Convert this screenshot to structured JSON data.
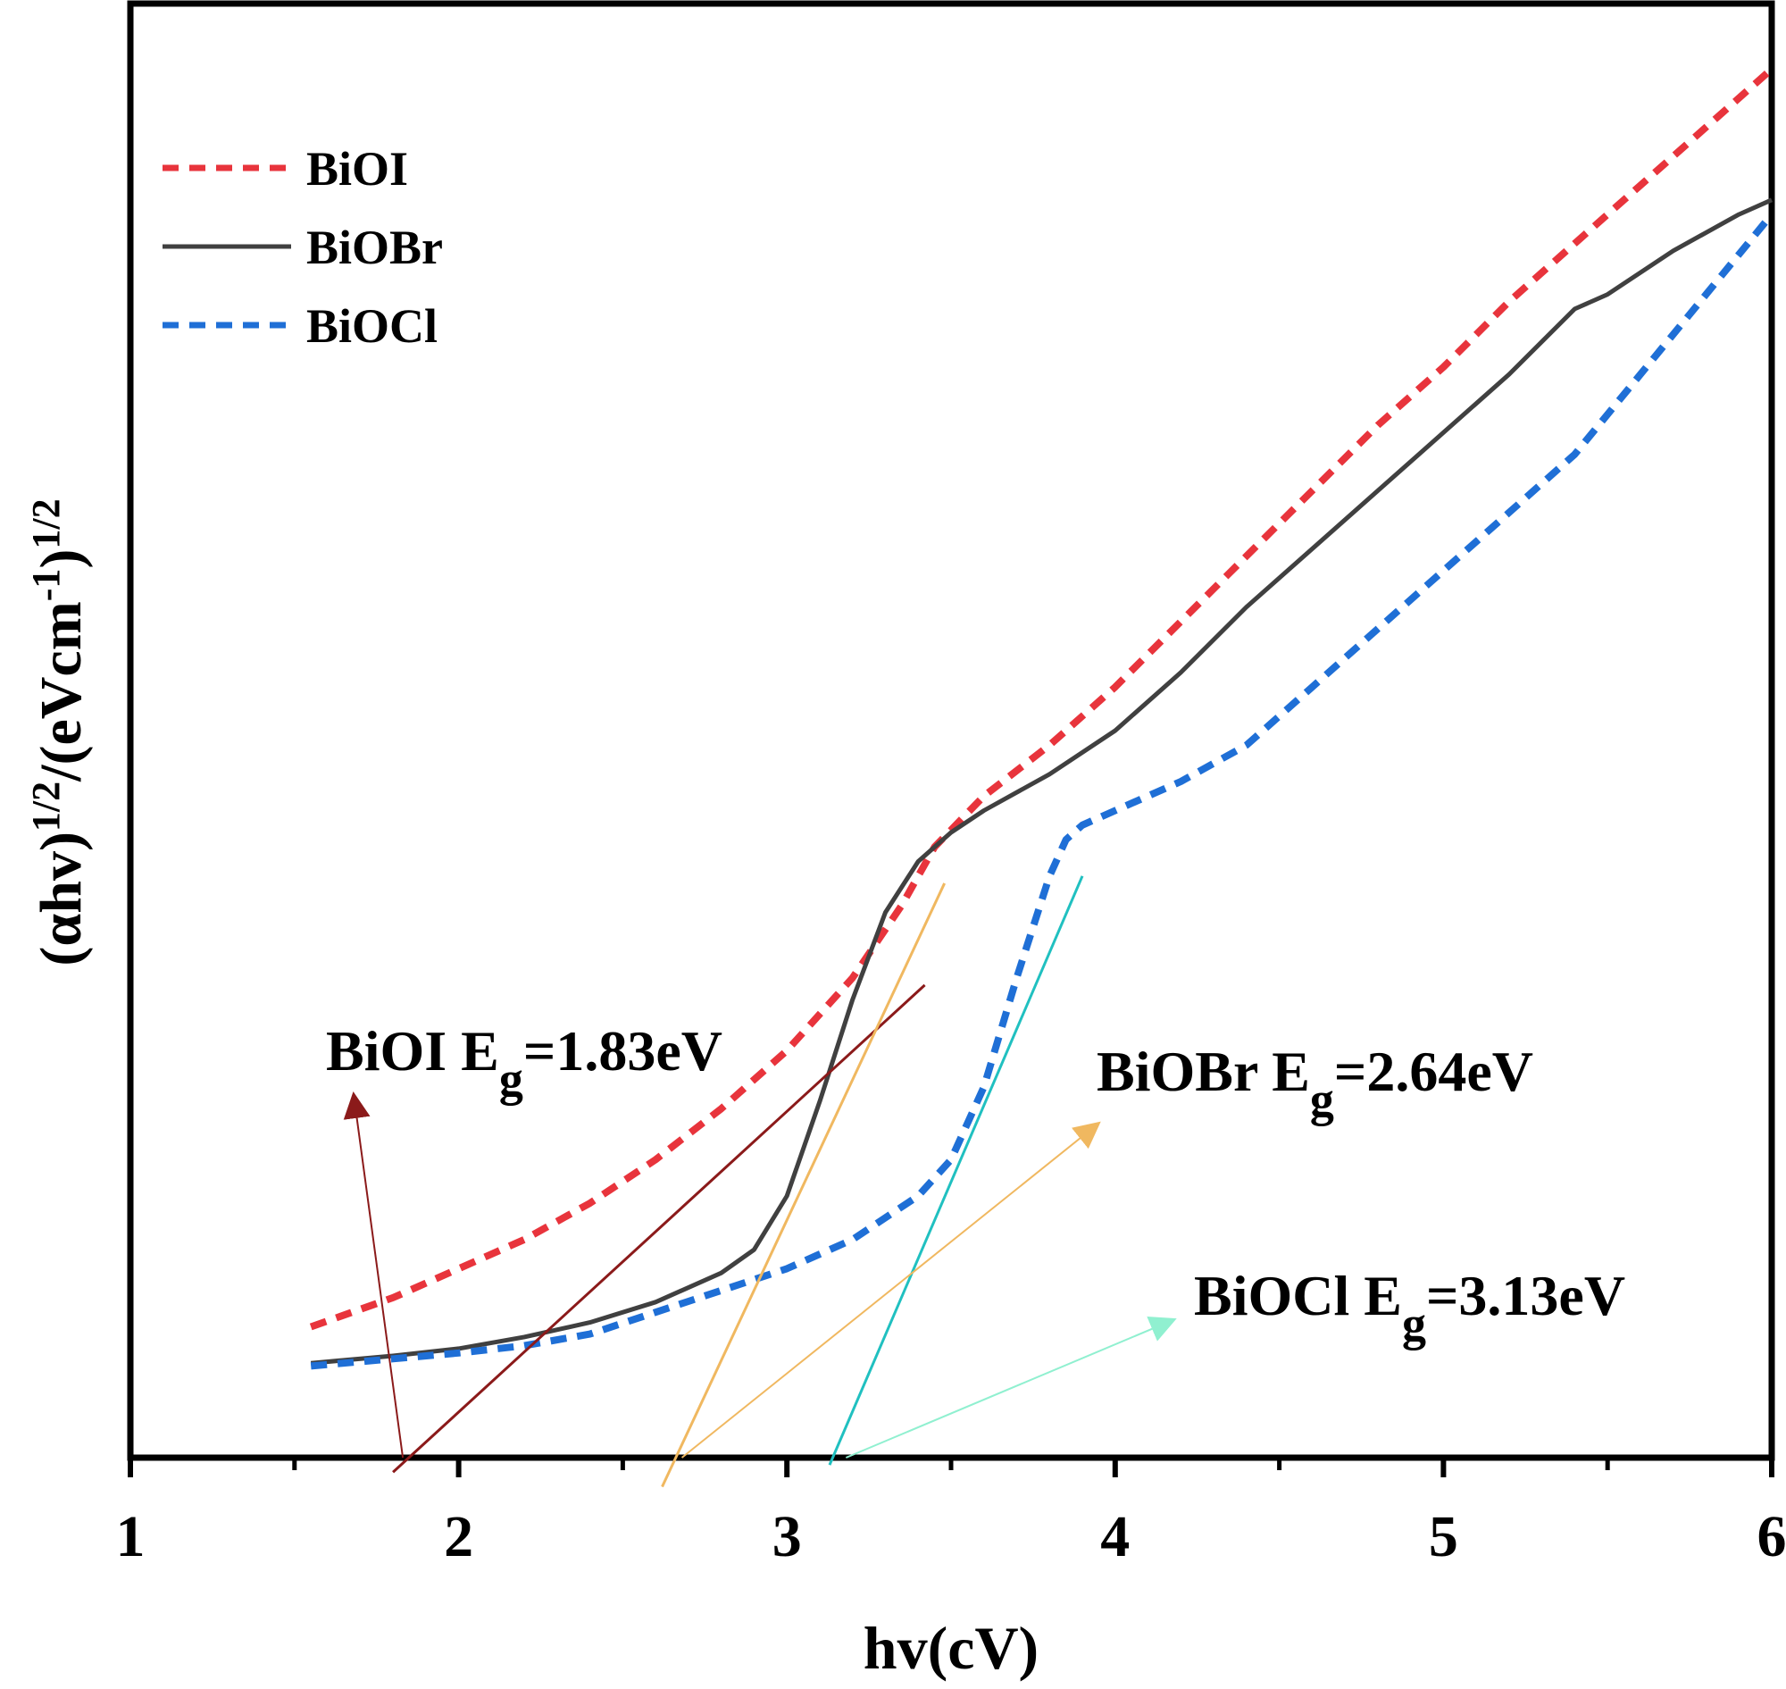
{
  "chart_data": {
    "type": "line",
    "title": "",
    "xlabel": "hv(cV)",
    "ylabel_main": "(αhv)",
    "ylabel_sup1": "1/2",
    "ylabel_mid": "/(eVcm",
    "ylabel_sup2": "-1",
    "ylabel_close": ")",
    "ylabel_sup3": "1/2",
    "xlim": [
      1,
      6
    ],
    "ylim": [
      0,
      1
    ],
    "x_ticks": [
      1,
      2,
      3,
      4,
      5,
      6
    ],
    "x_tick_labels": [
      "1",
      "2",
      "3",
      "4",
      "5",
      "6"
    ],
    "x_minor_ticks": [
      1.5,
      2.5,
      3.5,
      4.5,
      5.5
    ],
    "grid": false,
    "legend_position": "top-left",
    "series": [
      {
        "name": "BiOI",
        "color": "#e8343c",
        "style": "dashed",
        "points": [
          [
            1.55,
            0.09
          ],
          [
            1.8,
            0.11
          ],
          [
            2.0,
            0.13
          ],
          [
            2.2,
            0.15
          ],
          [
            2.4,
            0.175
          ],
          [
            2.6,
            0.205
          ],
          [
            2.8,
            0.24
          ],
          [
            3.0,
            0.28
          ],
          [
            3.2,
            0.33
          ],
          [
            3.35,
            0.38
          ],
          [
            3.45,
            0.42
          ],
          [
            3.6,
            0.455
          ],
          [
            3.8,
            0.49
          ],
          [
            4.0,
            0.53
          ],
          [
            4.2,
            0.575
          ],
          [
            4.4,
            0.62
          ],
          [
            4.6,
            0.665
          ],
          [
            4.8,
            0.71
          ],
          [
            5.0,
            0.75
          ],
          [
            5.2,
            0.795
          ],
          [
            5.4,
            0.835
          ],
          [
            5.6,
            0.875
          ],
          [
            5.8,
            0.915
          ],
          [
            6.0,
            0.955
          ]
        ]
      },
      {
        "name": "BiOBr",
        "color": "#404040",
        "style": "solid",
        "points": [
          [
            1.55,
            0.065
          ],
          [
            1.8,
            0.07
          ],
          [
            2.0,
            0.075
          ],
          [
            2.2,
            0.083
          ],
          [
            2.4,
            0.093
          ],
          [
            2.6,
            0.107
          ],
          [
            2.8,
            0.127
          ],
          [
            2.9,
            0.143
          ],
          [
            3.0,
            0.18
          ],
          [
            3.1,
            0.245
          ],
          [
            3.2,
            0.315
          ],
          [
            3.3,
            0.375
          ],
          [
            3.4,
            0.41
          ],
          [
            3.5,
            0.43
          ],
          [
            3.6,
            0.445
          ],
          [
            3.8,
            0.47
          ],
          [
            4.0,
            0.5
          ],
          [
            4.2,
            0.54
          ],
          [
            4.4,
            0.585
          ],
          [
            4.6,
            0.625
          ],
          [
            4.8,
            0.665
          ],
          [
            5.0,
            0.705
          ],
          [
            5.2,
            0.745
          ],
          [
            5.4,
            0.79
          ],
          [
            5.5,
            0.8
          ],
          [
            5.7,
            0.83
          ],
          [
            5.9,
            0.855
          ],
          [
            6.0,
            0.865
          ]
        ]
      },
      {
        "name": "BiOCl",
        "color": "#1f6fd6",
        "style": "dashed",
        "points": [
          [
            1.55,
            0.063
          ],
          [
            1.8,
            0.068
          ],
          [
            2.0,
            0.072
          ],
          [
            2.2,
            0.077
          ],
          [
            2.4,
            0.085
          ],
          [
            2.6,
            0.1
          ],
          [
            2.8,
            0.115
          ],
          [
            3.0,
            0.13
          ],
          [
            3.2,
            0.15
          ],
          [
            3.4,
            0.18
          ],
          [
            3.5,
            0.205
          ],
          [
            3.6,
            0.255
          ],
          [
            3.7,
            0.33
          ],
          [
            3.8,
            0.4
          ],
          [
            3.85,
            0.425
          ],
          [
            3.9,
            0.435
          ],
          [
            4.0,
            0.445
          ],
          [
            4.2,
            0.465
          ],
          [
            4.4,
            0.49
          ],
          [
            4.6,
            0.53
          ],
          [
            4.8,
            0.57
          ],
          [
            5.0,
            0.61
          ],
          [
            5.2,
            0.65
          ],
          [
            5.4,
            0.69
          ],
          [
            5.6,
            0.745
          ],
          [
            5.8,
            0.8
          ],
          [
            6.0,
            0.855
          ]
        ]
      }
    ],
    "fit_lines": [
      {
        "name": "BiOI tangent",
        "color": "#8b1a1a",
        "from": [
          1.8,
          -0.01
        ],
        "to": [
          3.42,
          0.325
        ]
      },
      {
        "name": "BiOBr tangent",
        "color": "#f0b860",
        "from": [
          2.62,
          -0.02
        ],
        "to": [
          3.48,
          0.395
        ]
      },
      {
        "name": "BiOCl tangent",
        "color": "#20c0c0",
        "from": [
          3.13,
          -0.005
        ],
        "to": [
          3.9,
          0.4
        ]
      }
    ],
    "annotations": [
      {
        "label_main": "BiOI E",
        "label_sub": "g",
        "label_val": "=1.83eV",
        "color": "#8b1a1a",
        "arrow_from": [
          1.83,
          0.0
        ],
        "arrow_to": [
          1.68,
          0.25
        ]
      },
      {
        "label_main": "BiOBr E",
        "label_sub": "g",
        "label_val": "=2.64eV",
        "color": "#f0b860",
        "arrow_from": [
          2.68,
          0.0
        ],
        "arrow_to": [
          3.95,
          0.23
        ]
      },
      {
        "label_main": "BiOCl E",
        "label_sub": "g",
        "label_val": "=3.13eV",
        "color": "#90f0d0",
        "arrow_from": [
          3.18,
          0.0
        ],
        "arrow_to": [
          4.18,
          0.095
        ]
      }
    ]
  }
}
